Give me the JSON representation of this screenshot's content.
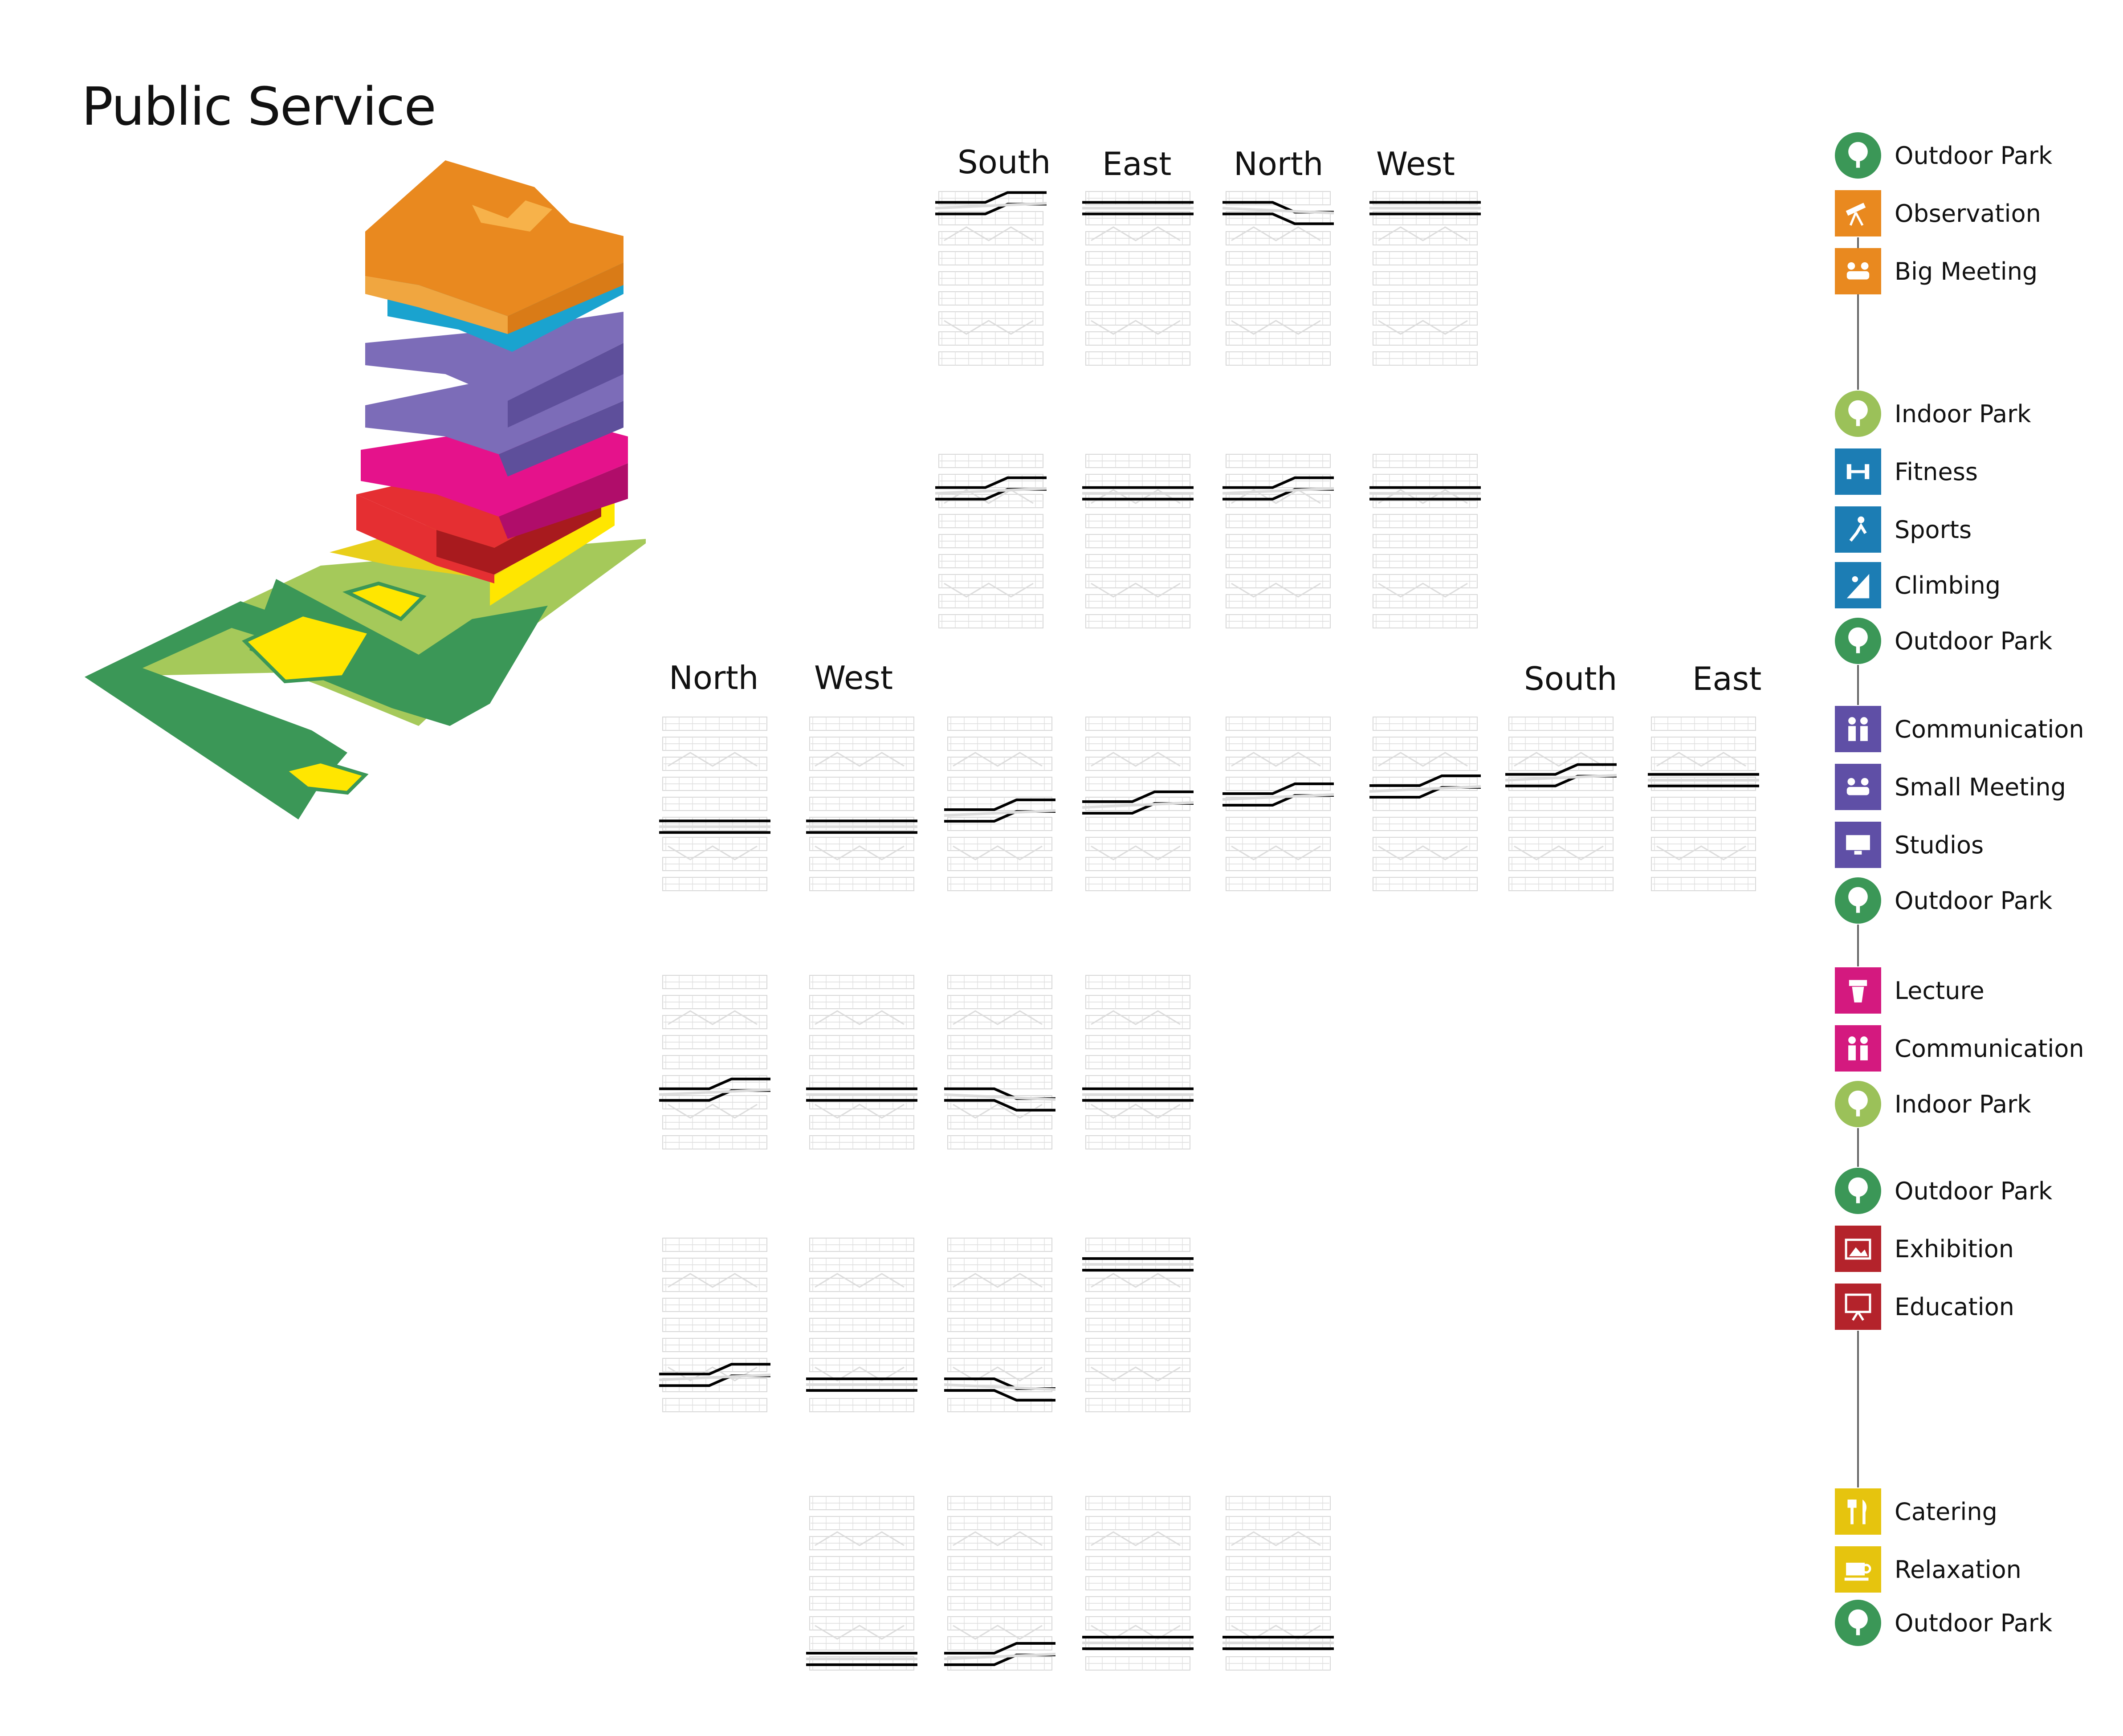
{
  "title": "Public Service",
  "orientation_labels": {
    "top_south": "South",
    "top_east": "East",
    "top_north": "North",
    "top_west": "West",
    "mid_north": "North",
    "mid_west": "West",
    "mid_south": "South",
    "mid_east": "East"
  },
  "axonometric_colors": {
    "orange": "#E9891F",
    "cyan": "#1AA3CF",
    "purple": "#7C6CB8",
    "magenta": "#E5128B",
    "red": "#E52F32",
    "yellow": "#FFE600",
    "green_dark": "#3B9757",
    "green_light": "#A5C95A"
  },
  "legend": [
    {
      "label": "Outdoor Park",
      "icon": "tree-icon",
      "color": "#3B9757",
      "shape": "circle"
    },
    {
      "label": "Observation",
      "icon": "telescope-icon",
      "color": "#E9891F",
      "shape": "square"
    },
    {
      "label": "Big Meeting",
      "icon": "group-icon",
      "color": "#E9891F",
      "shape": "square"
    },
    {
      "label": "Indoor Park",
      "icon": "tree-icon",
      "color": "#9BC159",
      "shape": "circle"
    },
    {
      "label": "Fitness",
      "icon": "dumbbell-icon",
      "color": "#1C7DB4",
      "shape": "square"
    },
    {
      "label": "Sports",
      "icon": "runner-icon",
      "color": "#1C7DB4",
      "shape": "square"
    },
    {
      "label": "Climbing",
      "icon": "climber-icon",
      "color": "#1C7DB4",
      "shape": "square"
    },
    {
      "label": "Outdoor Park",
      "icon": "tree-icon",
      "color": "#3B9757",
      "shape": "circle"
    },
    {
      "label": "Communication",
      "icon": "people-icon",
      "color": "#5F4FA6",
      "shape": "square"
    },
    {
      "label": "Small Meeting",
      "icon": "group-icon",
      "color": "#5F4FA6",
      "shape": "square"
    },
    {
      "label": "Studios",
      "icon": "monitor-icon",
      "color": "#5F4FA6",
      "shape": "square"
    },
    {
      "label": "Outdoor Park",
      "icon": "tree-icon",
      "color": "#3B9757",
      "shape": "circle"
    },
    {
      "label": "Lecture",
      "icon": "podium-icon",
      "color": "#D4197F",
      "shape": "square"
    },
    {
      "label": "Communication",
      "icon": "people-icon",
      "color": "#D4197F",
      "shape": "square"
    },
    {
      "label": "Indoor Park",
      "icon": "tree-icon",
      "color": "#9BC159",
      "shape": "circle"
    },
    {
      "label": "Outdoor Park",
      "icon": "tree-icon",
      "color": "#3B9757",
      "shape": "circle"
    },
    {
      "label": "Exhibition",
      "icon": "picture-icon",
      "color": "#B4232B",
      "shape": "square"
    },
    {
      "label": "Education",
      "icon": "board-icon",
      "color": "#B4232B",
      "shape": "square"
    },
    {
      "label": "Catering",
      "icon": "cutlery-icon",
      "color": "#E6C40E",
      "shape": "square"
    },
    {
      "label": "Relaxation",
      "icon": "cup-icon",
      "color": "#E6C40E",
      "shape": "square"
    },
    {
      "label": "Outdoor Park",
      "icon": "tree-icon",
      "color": "#3B9757",
      "shape": "circle"
    }
  ]
}
